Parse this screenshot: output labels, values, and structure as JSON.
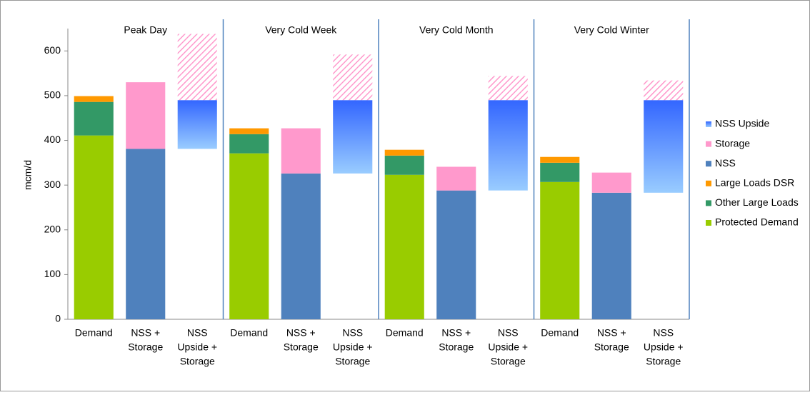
{
  "chart_data": {
    "type": "stacked-bar",
    "y_label": "mcm/d",
    "groups": [
      "Peak Day",
      "Very Cold Week",
      "Very Cold Month",
      "Very Cold Winter"
    ],
    "categories": [
      [
        "Demand"
      ],
      [
        "NSS +",
        "Storage"
      ],
      [
        "NSS",
        "Upside +",
        "Storage"
      ],
      [
        "Demand"
      ],
      [
        "NSS +",
        "Storage"
      ],
      [
        "NSS",
        "Upside +",
        "Storage"
      ],
      [
        "Demand"
      ],
      [
        "NSS +",
        "Storage"
      ],
      [
        "NSS",
        "Upside +",
        "Storage"
      ],
      [
        "Demand"
      ],
      [
        "NSS +",
        "Storage"
      ],
      [
        "NSS",
        "Upside +",
        "Storage"
      ]
    ],
    "series": [
      {
        "name": "Protected Demand",
        "color": "#99cc00",
        "values": [
          411,
          null,
          null,
          371,
          null,
          null,
          323,
          null,
          null,
          307,
          null,
          null
        ]
      },
      {
        "name": "Other Large Loads",
        "color": "#339966",
        "values": [
          75,
          null,
          null,
          43,
          null,
          null,
          43,
          null,
          null,
          43,
          null,
          null
        ]
      },
      {
        "name": "Large Loads DSR",
        "color": "#ff9900",
        "values": [
          13,
          null,
          null,
          13,
          null,
          null,
          13,
          null,
          null,
          13,
          null,
          null
        ]
      },
      {
        "name": "NSS",
        "color": "#4f81bd",
        "values": [
          null,
          381,
          null,
          null,
          326,
          null,
          null,
          288,
          null,
          null,
          283,
          null
        ]
      },
      {
        "name": "Storage",
        "color": "#ff99cc",
        "values": [
          null,
          149,
          148,
          null,
          101,
          102,
          null,
          53,
          54,
          null,
          45,
          44
        ]
      },
      {
        "name": "NSS Upside",
        "color": "#3366ff",
        "color2": "#99ccff",
        "values": [
          null,
          null,
          109,
          null,
          null,
          164,
          null,
          null,
          202,
          null,
          null,
          207
        ]
      }
    ],
    "ylim": [
      0,
      650
    ],
    "yticks": [
      0,
      100,
      200,
      300,
      400,
      500,
      600
    ],
    "grid": false,
    "legend": "right"
  }
}
